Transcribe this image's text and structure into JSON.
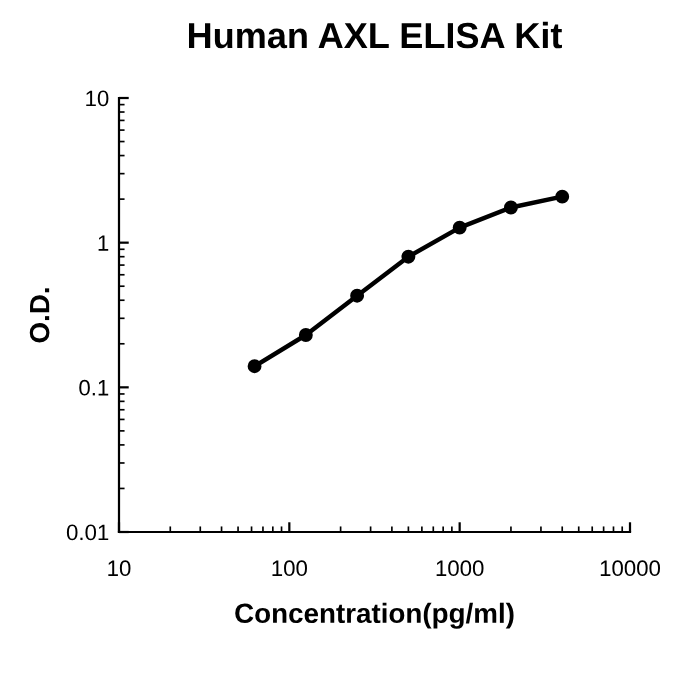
{
  "chart_data": {
    "type": "line",
    "title": "Human AXL ELISA Kit",
    "xlabel": "Concentration(pg/ml)",
    "ylabel": "O.D.",
    "x": [
      62.5,
      125,
      250,
      500,
      1000,
      2000,
      4000
    ],
    "series": [
      {
        "color": "#000000",
        "values": [
          0.14,
          0.23,
          0.43,
          0.8,
          1.27,
          1.75,
          2.08
        ]
      }
    ],
    "log": "xy",
    "xlim": [
      10,
      10000
    ],
    "xticks": [
      10,
      100,
      1000,
      10000
    ],
    "ylim": [
      0.01,
      10
    ],
    "yticks": [
      0.01,
      0.1,
      1,
      10
    ],
    "marker": "circle",
    "line_style": "solid"
  }
}
